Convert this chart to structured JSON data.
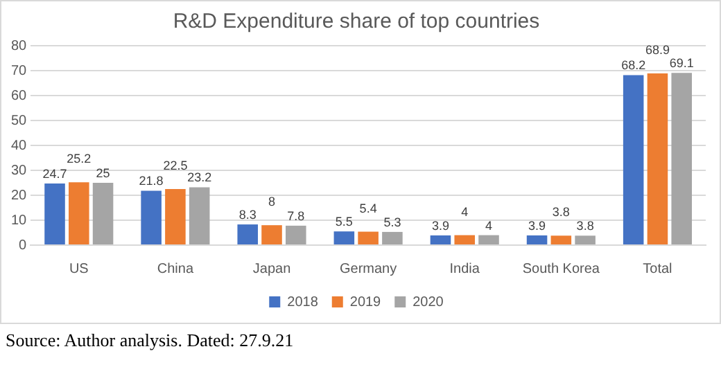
{
  "chart_data": {
    "type": "bar",
    "title": "R&D Expenditure share of top countries",
    "categories": [
      "US",
      "China",
      "Japan",
      "Germany",
      "India",
      "South Korea",
      "Total"
    ],
    "series": [
      {
        "name": "2018",
        "color": "#4472c4",
        "values": [
          24.7,
          21.8,
          8.3,
          5.5,
          3.9,
          3.9,
          68.2
        ]
      },
      {
        "name": "2019",
        "color": "#ed7d31",
        "values": [
          25.2,
          22.5,
          8,
          5.4,
          4,
          3.8,
          68.9
        ]
      },
      {
        "name": "2020",
        "color": "#a5a5a5",
        "values": [
          25,
          23.2,
          7.8,
          5.3,
          4,
          3.8,
          69.1
        ]
      }
    ],
    "ylim": [
      0,
      80
    ],
    "yticks": [
      0,
      10,
      20,
      30,
      40,
      50,
      60,
      70,
      80
    ],
    "grid": "y",
    "legend": "bottom",
    "data_labels": true,
    "annotations": [
      "Source: Author analysis. Dated: 27.9.21"
    ]
  }
}
